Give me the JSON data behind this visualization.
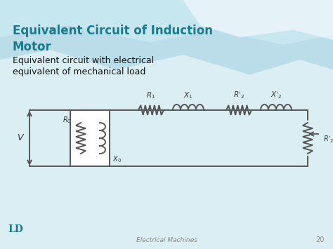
{
  "title_line1": "Equivalent Circuit of Induction",
  "title_line2": "Motor",
  "subtitle1": "Equivalent circuit with electrical",
  "subtitle2": "equivalent of mechanical load",
  "footer_text": "Electrical Machines",
  "page_number": "20",
  "title_color": "#1a7a8a",
  "bg_color": "#daeef3",
  "wave_color1": "#a8d8e2",
  "wave_color2": "#c8eaf0",
  "white_wave": "#ffffff",
  "circuit_color": "#555555",
  "label_color": "#333333",
  "logo_color": "#1a7a8a",
  "footer_color": "#888888"
}
